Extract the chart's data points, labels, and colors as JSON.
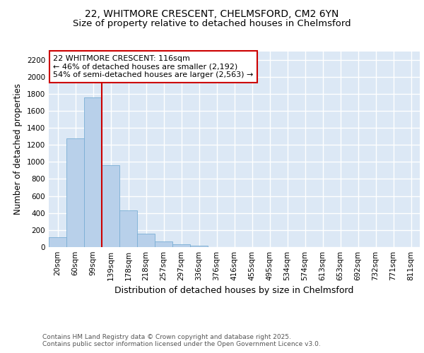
{
  "title_line1": "22, WHITMORE CRESCENT, CHELMSFORD, CM2 6YN",
  "title_line2": "Size of property relative to detached houses in Chelmsford",
  "xlabel": "Distribution of detached houses by size in Chelmsford",
  "ylabel": "Number of detached properties",
  "bar_color": "#b8d0ea",
  "bar_edge_color": "#7aaed4",
  "categories": [
    "20sqm",
    "60sqm",
    "99sqm",
    "139sqm",
    "178sqm",
    "218sqm",
    "257sqm",
    "297sqm",
    "336sqm",
    "376sqm",
    "416sqm",
    "455sqm",
    "495sqm",
    "534sqm",
    "574sqm",
    "613sqm",
    "653sqm",
    "692sqm",
    "732sqm",
    "771sqm",
    "811sqm"
  ],
  "values": [
    115,
    1280,
    1760,
    960,
    430,
    155,
    70,
    35,
    20,
    0,
    0,
    0,
    0,
    0,
    0,
    0,
    0,
    0,
    0,
    0,
    0
  ],
  "ylim": [
    0,
    2300
  ],
  "yticks": [
    0,
    200,
    400,
    600,
    800,
    1000,
    1200,
    1400,
    1600,
    1800,
    2000,
    2200
  ],
  "vline_x": 2.5,
  "annotation_text": "22 WHITMORE CRESCENT: 116sqm\n← 46% of detached houses are smaller (2,192)\n54% of semi-detached houses are larger (2,563) →",
  "annotation_box_color": "#ffffff",
  "annotation_box_edge": "#cc0000",
  "vline_color": "#cc0000",
  "background_color": "#dce8f5",
  "grid_color": "#ffffff",
  "footer_text": "Contains HM Land Registry data © Crown copyright and database right 2025.\nContains public sector information licensed under the Open Government Licence v3.0.",
  "title_fontsize": 10,
  "subtitle_fontsize": 9.5,
  "xlabel_fontsize": 9,
  "ylabel_fontsize": 8.5,
  "tick_fontsize": 7.5,
  "footer_fontsize": 6.5,
  "annot_fontsize": 8
}
